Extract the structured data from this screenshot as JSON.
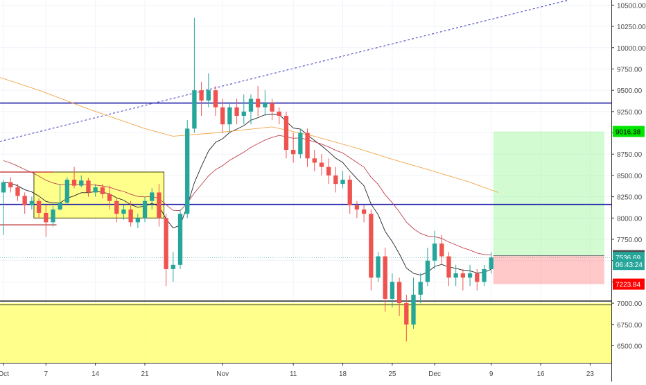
{
  "chart_data": {
    "type": "candlestick",
    "price_axis": {
      "ticks": [
        "10500.00",
        "10250.00",
        "10000.00",
        "9750.00",
        "9500.00",
        "9250.00",
        "9000.00",
        "8750.00",
        "8500.00",
        "8250.00",
        "8000.00",
        "7750.00",
        "7500.00",
        "7250.00",
        "7000.00",
        "6750.00",
        "6500.00"
      ],
      "tick_values": [
        10500,
        10250,
        10000,
        9750,
        9500,
        9250,
        9000,
        8750,
        8500,
        8250,
        8000,
        7750,
        7500,
        7250,
        7000,
        6750,
        6500
      ],
      "range": [
        6300,
        10560
      ]
    },
    "time_axis": {
      "labels": [
        "Oct",
        "7",
        "14",
        "21",
        "Nov",
        "11",
        "18",
        "25",
        "Dec",
        "9",
        "16",
        "23"
      ],
      "label_day_index": [
        0,
        6,
        13,
        20,
        31,
        41,
        48,
        55,
        61,
        69,
        76,
        83
      ],
      "range_days": [
        -0.5,
        86
      ]
    },
    "badges": [
      {
        "text": "9016.38",
        "value": 9016.38,
        "bg": "#00e600",
        "fg": "#000000"
      },
      {
        "text": "7558.54",
        "value": 7558.54,
        "bg": "#4d4d4d",
        "fg": "#ffffff"
      },
      {
        "text": "7536.69",
        "value": 7536.69,
        "bg": "#26a69a",
        "fg": "#ffffff"
      },
      {
        "text": "06:43:24",
        "value": 7455,
        "bg": "#26a69a",
        "fg": "#ffffff"
      },
      {
        "text": "7223.84",
        "value": 7223.84,
        "bg": "#ff0000",
        "fg": "#ffffff"
      }
    ],
    "candles": [
      [
        8300,
        8420,
        8450,
        7800
      ],
      [
        8420,
        8360,
        8480,
        8300
      ],
      [
        8360,
        8260,
        8400,
        8200
      ],
      [
        8260,
        8150,
        8300,
        8050
      ],
      [
        8150,
        8200,
        8250,
        8100
      ],
      [
        8200,
        8060,
        8230,
        8000
      ],
      [
        8060,
        7950,
        8150,
        7780
      ],
      [
        7950,
        8100,
        8140,
        7900
      ],
      [
        8100,
        8180,
        8400,
        8090
      ],
      [
        8180,
        8450,
        8480,
        8170
      ],
      [
        8450,
        8380,
        8600,
        8350
      ],
      [
        8380,
        8440,
        8500,
        8360
      ],
      [
        8440,
        8300,
        8470,
        8250
      ],
      [
        8300,
        8360,
        8400,
        8250
      ],
      [
        8360,
        8280,
        8400,
        8230
      ],
      [
        8280,
        8200,
        8380,
        8100
      ],
      [
        8200,
        8050,
        8240,
        7950
      ],
      [
        8050,
        8100,
        8150,
        7980
      ],
      [
        8100,
        7950,
        8200,
        7900
      ],
      [
        7950,
        8000,
        8050,
        7880
      ],
      [
        8000,
        8200,
        8250,
        7950
      ],
      [
        8200,
        8300,
        8350,
        8100
      ],
      [
        8300,
        8000,
        8400,
        7900
      ],
      [
        8000,
        7400,
        8050,
        7200
      ],
      [
        7400,
        7450,
        7600,
        7250
      ],
      [
        7450,
        8050,
        8100,
        7400
      ],
      [
        8050,
        9050,
        9150,
        8000
      ],
      [
        9050,
        9500,
        10350,
        9000
      ],
      [
        9500,
        9380,
        9600,
        9200
      ],
      [
        9380,
        9500,
        9700,
        9300
      ],
      [
        9500,
        9300,
        9550,
        9200
      ],
      [
        9300,
        9100,
        9400,
        9000
      ],
      [
        9100,
        9300,
        9350,
        9000
      ],
      [
        9300,
        9200,
        9400,
        9100
      ],
      [
        9200,
        9250,
        9450,
        9100
      ],
      [
        9250,
        9400,
        9450,
        9100
      ],
      [
        9400,
        9300,
        9550,
        9200
      ],
      [
        9300,
        9350,
        9500,
        9200
      ],
      [
        9350,
        9250,
        9400,
        9150
      ],
      [
        9250,
        9200,
        9300,
        9100
      ],
      [
        9200,
        8800,
        9250,
        8700
      ],
      [
        8800,
        8750,
        9000,
        8650
      ],
      [
        8750,
        9000,
        9050,
        8700
      ],
      [
        9000,
        8700,
        9050,
        8600
      ],
      [
        8700,
        8650,
        8800,
        8550
      ],
      [
        8650,
        8600,
        8750,
        8500
      ],
      [
        8600,
        8500,
        8700,
        8400
      ],
      [
        8500,
        8400,
        8600,
        8300
      ],
      [
        8400,
        8450,
        8550,
        8350
      ],
      [
        8450,
        8150,
        8500,
        8050
      ],
      [
        8150,
        8100,
        8200,
        8000
      ],
      [
        8100,
        8050,
        8150,
        7950
      ],
      [
        8050,
        7300,
        8100,
        7150
      ],
      [
        7300,
        7550,
        7600,
        7250
      ],
      [
        7550,
        7050,
        7650,
        6900
      ],
      [
        7050,
        7250,
        7350,
        6950
      ],
      [
        7250,
        7000,
        7300,
        6850
      ],
      [
        7000,
        6750,
        7100,
        6550
      ],
      [
        6750,
        7100,
        7300,
        6700
      ],
      [
        7100,
        7250,
        7350,
        7000
      ],
      [
        7250,
        7500,
        7650,
        7200
      ],
      [
        7500,
        7700,
        7850,
        7400
      ],
      [
        7700,
        7550,
        7800,
        7450
      ],
      [
        7550,
        7300,
        7600,
        7200
      ],
      [
        7300,
        7350,
        7450,
        7200
      ],
      [
        7350,
        7300,
        7400,
        7150
      ],
      [
        7300,
        7350,
        7450,
        7200
      ],
      [
        7350,
        7250,
        7400,
        7150
      ],
      [
        7250,
        7400,
        7450,
        7200
      ],
      [
        7400,
        7537,
        7600,
        7350
      ]
    ]
  }
}
